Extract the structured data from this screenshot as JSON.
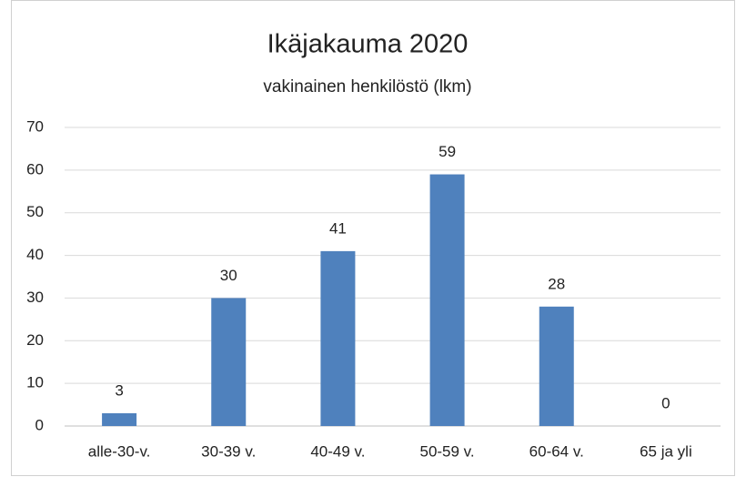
{
  "chart_data": {
    "type": "bar",
    "title": "Ikäjakauma 2020",
    "subtitle": "vakinainen henkilöstö (lkm)",
    "categories": [
      "alle-30-v.",
      "30-39 v.",
      "40-49 v.",
      "50-59 v.",
      "60-64 v.",
      "65 ja yli"
    ],
    "values": [
      3,
      30,
      41,
      59,
      28,
      0
    ],
    "color": "#4f81bd",
    "ylim": [
      0,
      70
    ],
    "yticks": [
      0,
      10,
      20,
      30,
      40,
      50,
      60,
      70
    ],
    "grid": true,
    "data_labels": true
  }
}
